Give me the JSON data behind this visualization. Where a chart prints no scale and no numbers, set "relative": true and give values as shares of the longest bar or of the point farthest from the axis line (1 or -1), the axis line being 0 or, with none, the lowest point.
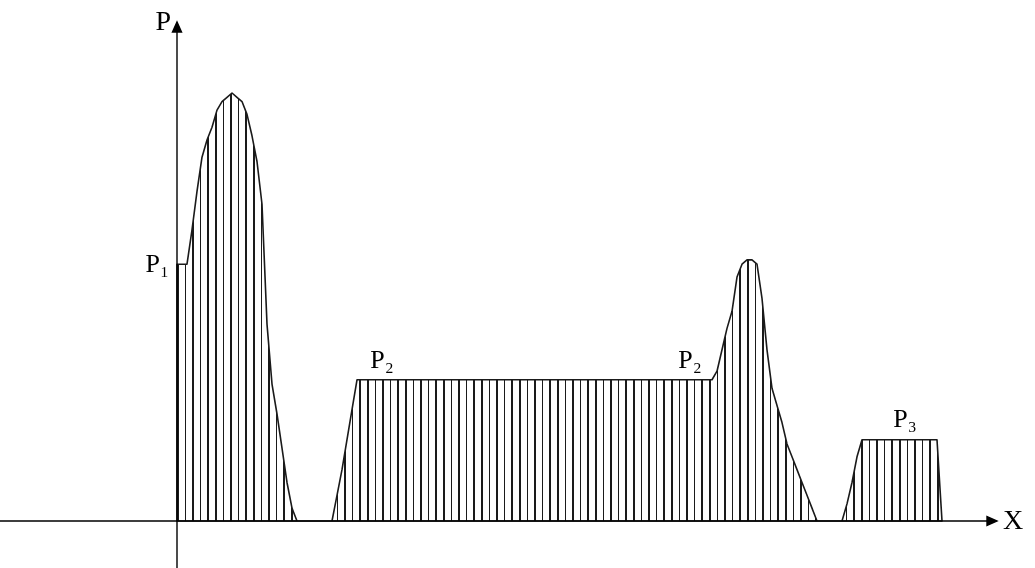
{
  "chart_data": {
    "type": "area",
    "relative": true,
    "xlabel": "X",
    "ylabel": "P",
    "color": "#1a1a1a",
    "categories": [
      null,
      null,
      null,
      null,
      null,
      null,
      null,
      null,
      null,
      null,
      null,
      null,
      null,
      null,
      null,
      null,
      null,
      null,
      null,
      null,
      null,
      null,
      null,
      null,
      null,
      null,
      null,
      null,
      null,
      null,
      null,
      null,
      null,
      null,
      null,
      null,
      null,
      null,
      null,
      null,
      null,
      null,
      null,
      null,
      null,
      null,
      null,
      null,
      null,
      null,
      null,
      null,
      null,
      null,
      null,
      null,
      null,
      null,
      null,
      null,
      null,
      null,
      null,
      null,
      null,
      null,
      null,
      null,
      null,
      null,
      null,
      null,
      null,
      null,
      null,
      null,
      null,
      null,
      null,
      null,
      null,
      null,
      null,
      null,
      null,
      null,
      null,
      null,
      null,
      null,
      null,
      null,
      null,
      null,
      null,
      null,
      null,
      null,
      null,
      null,
      null,
      null,
      null,
      null,
      null,
      null,
      null,
      null,
      null,
      null,
      null,
      null,
      null,
      null,
      null,
      null,
      null,
      null,
      null,
      null,
      null,
      null,
      null,
      null,
      null,
      null,
      null,
      null,
      null,
      null,
      null,
      null,
      null,
      null,
      null,
      null,
      null,
      null,
      null,
      null,
      null,
      null,
      null,
      null,
      null,
      null,
      null,
      null,
      null,
      null,
      null,
      null,
      null,
      null
    ],
    "values": [
      0.6,
      0.6,
      0.6,
      0.68,
      0.77,
      0.85,
      0.89,
      0.92,
      0.96,
      0.98,
      0.99,
      1,
      0.99,
      0.98,
      0.95,
      0.9,
      0.84,
      0.74,
      0.46,
      0.32,
      0.25,
      0.17,
      0.09,
      0.03,
      0,
      0,
      0,
      0,
      0,
      0,
      0,
      0,
      0.06,
      0.12,
      0.19,
      0.26,
      0.33,
      0.33,
      0.33,
      0.33,
      0.33,
      0.33,
      0.33,
      0.33,
      0.33,
      0.33,
      0.33,
      0.33,
      0.33,
      0.33,
      0.33,
      0.33,
      0.33,
      0.33,
      0.33,
      0.33,
      0.33,
      0.33,
      0.33,
      0.33,
      0.33,
      0.33,
      0.33,
      0.33,
      0.33,
      0.33,
      0.33,
      0.33,
      0.33,
      0.33,
      0.33,
      0.33,
      0.33,
      0.33,
      0.33,
      0.33,
      0.33,
      0.33,
      0.33,
      0.33,
      0.33,
      0.33,
      0.33,
      0.33,
      0.33,
      0.33,
      0.33,
      0.33,
      0.33,
      0.33,
      0.33,
      0.33,
      0.33,
      0.33,
      0.33,
      0.33,
      0.33,
      0.33,
      0.33,
      0.33,
      0.33,
      0.33,
      0.33,
      0.33,
      0.33,
      0.33,
      0.33,
      0.33,
      0.35,
      0.4,
      0.45,
      0.49,
      0.57,
      0.6,
      0.61,
      0.61,
      0.6,
      0.52,
      0.4,
      0.31,
      0.27,
      0.23,
      0.18,
      0.15,
      0.12,
      0.09,
      0.06,
      0.03,
      0,
      0,
      0,
      0,
      0,
      0,
      0.04,
      0.09,
      0.15,
      0.19,
      0.19,
      0.19,
      0.19,
      0.19,
      0.19,
      0.19,
      0.19,
      0.19,
      0.19,
      0.19,
      0.19,
      0.19,
      0.19,
      0.19,
      0.19,
      0
    ],
    "annotations": [
      "P₁",
      {
        "text": "P₂",
        "y": 0.33
      },
      {
        "text": "P₂",
        "y": 0.33
      },
      {
        "text": "P₃",
        "y": 0.19
      }
    ]
  }
}
